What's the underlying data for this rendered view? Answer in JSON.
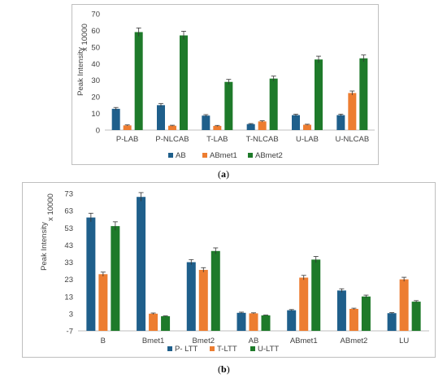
{
  "chart_data": [
    {
      "id": "a",
      "type": "bar",
      "caption_letter": "a",
      "ylabel": "Peak Intensity",
      "unit_label": "x 10000",
      "ylim": [
        0,
        70
      ],
      "yticks": [
        0,
        10,
        20,
        30,
        40,
        50,
        60,
        70
      ],
      "categories": [
        "P-LAB",
        "P-NLCAB",
        "T-LAB",
        "T-NLCAB",
        "U-LAB",
        "U-NLCAB"
      ],
      "series": [
        {
          "name": "AB",
          "color": "#1f5f8b",
          "values": [
            12.8,
            15.0,
            8.7,
            3.6,
            9.0,
            9.0
          ],
          "errors": [
            0.8,
            1.0,
            0.6,
            0.3,
            0.6,
            0.6
          ]
        },
        {
          "name": "ABmet1",
          "color": "#ed7d31",
          "values": [
            2.8,
            2.6,
            2.5,
            5.2,
            3.2,
            22.3
          ],
          "errors": [
            0.3,
            0.3,
            0.3,
            0.4,
            0.3,
            1.2
          ]
        },
        {
          "name": "ABmet2",
          "color": "#1e7a2a",
          "values": [
            59.0,
            57.0,
            29.0,
            31.0,
            42.5,
            43.2
          ],
          "errors": [
            2.5,
            2.5,
            1.5,
            1.5,
            2.0,
            2.0
          ]
        }
      ],
      "grid": false,
      "legend_position": "bottom"
    },
    {
      "id": "b",
      "type": "bar",
      "caption_letter": "b",
      "ylabel": "Peak Intensity",
      "unit_label": "x 10000",
      "ylim": [
        -7,
        73
      ],
      "yticks": [
        -7,
        3,
        13,
        23,
        33,
        43,
        53,
        63,
        73
      ],
      "categories": [
        "B",
        "Bmet1",
        "Bmet2",
        "AB",
        "ABmet1",
        "ABmet2",
        "LU"
      ],
      "series": [
        {
          "name": "P- LTT",
          "color": "#1f5f8b",
          "values": [
            59.0,
            71.0,
            33.0,
            3.5,
            5.0,
            16.5,
            3.3
          ],
          "errors": [
            2.5,
            2.5,
            1.5,
            0.4,
            0.4,
            1.0,
            0.3
          ]
        },
        {
          "name": "T-LTT",
          "color": "#ed7d31",
          "values": [
            26.0,
            3.0,
            28.5,
            3.2,
            24.0,
            5.8,
            23.0
          ],
          "errors": [
            1.2,
            0.4,
            1.3,
            0.3,
            1.3,
            0.4,
            1.2
          ]
        },
        {
          "name": "U-LTT",
          "color": "#1e7a2a",
          "values": [
            54.0,
            1.5,
            39.5,
            2.0,
            34.5,
            13.0,
            10.0
          ],
          "errors": [
            2.5,
            0.2,
            1.8,
            0.2,
            1.8,
            0.8,
            0.6
          ]
        }
      ],
      "grid": false,
      "legend_position": "bottom"
    }
  ]
}
